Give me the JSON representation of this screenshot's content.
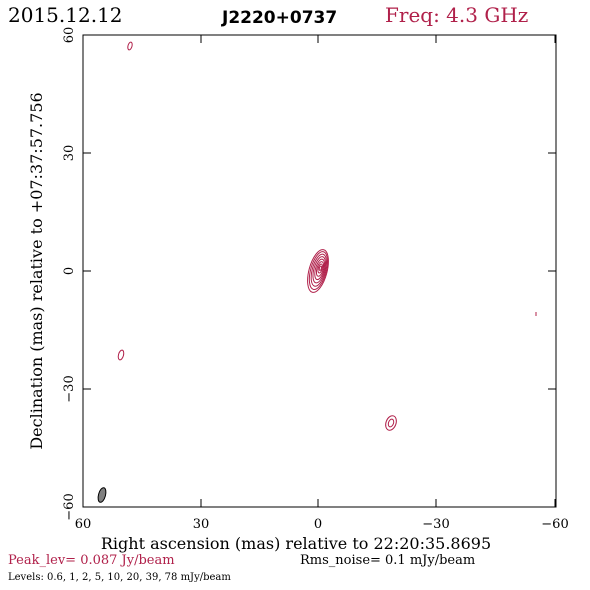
{
  "header": {
    "date": "2015.12.12",
    "source": "J2220+0737",
    "freq": "Freq: 4.3 GHz"
  },
  "axes": {
    "xlabel": "Right ascension (mas) relative to 22:20:35.8695",
    "ylabel": "Declination (mas) relative to +07:37:57.756",
    "x_ticks": [
      "60",
      "30",
      "0",
      "−30",
      "−60"
    ],
    "y_ticks": [
      "60",
      "30",
      "0",
      "−30",
      "−60"
    ],
    "xlim": [
      60,
      -60
    ],
    "ylim": [
      -60,
      60
    ]
  },
  "footer": {
    "peak": "Peak_lev=  0.087 Jy/beam",
    "rms": "Rms_noise=   0.1 mJy/beam",
    "levels": "Levels: 0.6,    1,    2,    5,   10,   20,   39,   78 mJy/beam"
  },
  "colors": {
    "contour": "#b0204a",
    "axes": "#000000",
    "beam": "#808080"
  }
}
